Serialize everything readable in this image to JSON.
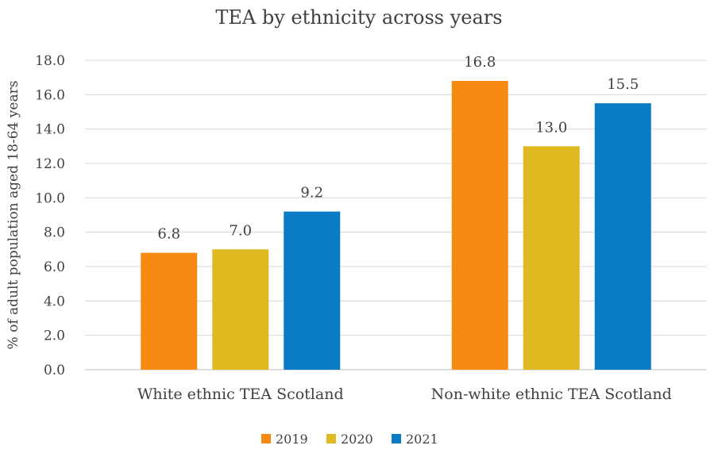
{
  "chart_data": {
    "type": "bar",
    "title": "TEA by ethnicity across years",
    "xlabel": "",
    "ylabel": "% of adult population aged 18-64 years",
    "categories": [
      "White ethnic TEA Scotland",
      "Non-white ethnic TEA Scotland"
    ],
    "series": [
      {
        "name": "2019",
        "values": [
          6.8,
          16.8
        ],
        "labels": [
          "6.8",
          "16.8"
        ],
        "color": "#F68A13"
      },
      {
        "name": "2020",
        "values": [
          7.0,
          13.0
        ],
        "labels": [
          "7.0",
          "13.0"
        ],
        "color": "#E0B820"
      },
      {
        "name": "2021",
        "values": [
          9.2,
          15.5
        ],
        "labels": [
          "9.2",
          "15.5"
        ],
        "color": "#0A7CC6"
      }
    ],
    "ylim": [
      0,
      18
    ],
    "yticks": [
      "0.0",
      "2.0",
      "4.0",
      "6.0",
      "8.0",
      "10.0",
      "12.0",
      "14.0",
      "16.0",
      "18.0"
    ],
    "grid": true,
    "legend_position": "bottom"
  }
}
